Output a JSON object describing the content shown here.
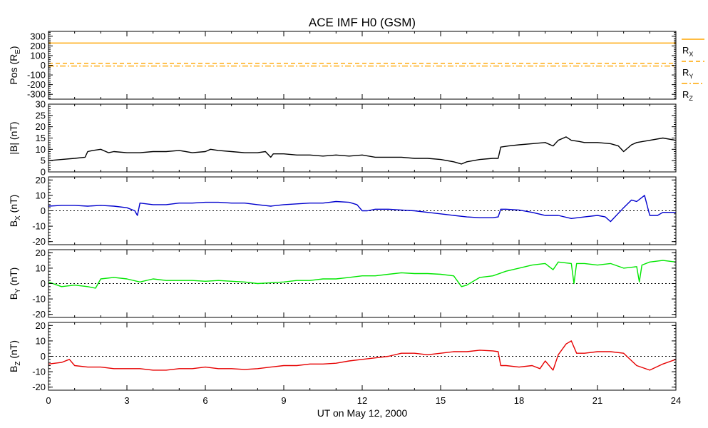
{
  "colors": {
    "rx": "#ffa500",
    "ry": "#ffa500",
    "rz": "#ffa500",
    "b": "#000000",
    "bx": "#0000cd",
    "by": "#00e600",
    "bz": "#e60000"
  },
  "chart_data": {
    "type": "line",
    "title": "ACE IMF H0 (GSM)",
    "xlabel": "UT on May 12, 2000",
    "xlim": [
      0,
      24
    ],
    "x_ticks": [
      "0",
      "3",
      "6",
      "9",
      "12",
      "15",
      "18",
      "21",
      "24"
    ],
    "x_tick_values": [
      0,
      3,
      6,
      9,
      12,
      15,
      18,
      21,
      24
    ],
    "panels": [
      {
        "key": "pos",
        "ylabel": {
          "main": "Pos (R",
          "sub": "E",
          "tail": ")"
        },
        "ylim": [
          -350,
          350
        ],
        "y_ticks": [
          "300",
          "200",
          "100",
          "0",
          "-100",
          "-200",
          "-300"
        ],
        "y_tick_values": [
          300,
          200,
          100,
          0,
          -100,
          -200,
          -300
        ],
        "zero_line": false,
        "legend": [
          {
            "name": "R",
            "sub": "X",
            "dash": "solid"
          },
          {
            "name": "R",
            "sub": "Y",
            "dash": "dashed"
          },
          {
            "name": "R",
            "sub": "Z",
            "dash": "dashdot"
          }
        ],
        "series": [
          {
            "name": "RX",
            "style": "solid",
            "x": [
              0,
              24
            ],
            "y": [
              230,
              230
            ]
          },
          {
            "name": "RY",
            "style": "dashed",
            "x": [
              0,
              24
            ],
            "y": [
              21,
              21
            ]
          },
          {
            "name": "RZ",
            "style": "dashdot",
            "x": [
              0,
              24
            ],
            "y": [
              -8,
              -8
            ]
          }
        ]
      },
      {
        "key": "b",
        "ylabel": {
          "main": "|B| (nT)",
          "sub": "",
          "tail": ""
        },
        "ylim": [
          0,
          30
        ],
        "y_ticks": [
          "30",
          "25",
          "20",
          "15",
          "10",
          "5",
          "0"
        ],
        "y_tick_values": [
          30,
          25,
          20,
          15,
          10,
          5,
          0
        ],
        "zero_line": false,
        "series": [
          {
            "name": "|B|",
            "x": [
              0,
              0.5,
              1.0,
              1.4,
              1.5,
              1.7,
              2.0,
              2.3,
              2.5,
              3.0,
              3.5,
              4.0,
              4.5,
              5.0,
              5.5,
              6.0,
              6.2,
              6.5,
              7.0,
              7.5,
              8.0,
              8.3,
              8.5,
              8.6,
              9.0,
              9.5,
              10.0,
              10.5,
              11.0,
              11.5,
              12.0,
              12.5,
              13.0,
              13.5,
              14.0,
              14.5,
              15.0,
              15.5,
              15.8,
              16.0,
              16.5,
              17.0,
              17.2,
              17.3,
              17.6,
              18.0,
              18.5,
              19.0,
              19.3,
              19.5,
              19.8,
              20.0,
              20.3,
              20.5,
              21.0,
              21.5,
              21.8,
              22.0,
              22.3,
              22.5,
              23.0,
              23.5,
              24.0
            ],
            "y": [
              5,
              5.5,
              6,
              6.5,
              9,
              9.5,
              10,
              8.5,
              9,
              8.5,
              8.5,
              9,
              9,
              9.5,
              8.5,
              9,
              10,
              9.5,
              9,
              8.5,
              8.5,
              9,
              6.5,
              8,
              8,
              7.5,
              7.5,
              7,
              7.5,
              7,
              7.5,
              6.5,
              6.5,
              6.5,
              6,
              6,
              5.5,
              4.5,
              3.5,
              4.5,
              5.5,
              6,
              6,
              11,
              11.5,
              12,
              12.5,
              13,
              11.5,
              14,
              15.5,
              14,
              13.5,
              13,
              13,
              12.5,
              11.5,
              9,
              12,
              13,
              14,
              15,
              14
            ]
          }
        ]
      },
      {
        "key": "bx",
        "ylabel": {
          "main": "B",
          "sub": "X",
          "tail": " (nT)"
        },
        "ylim": [
          -22,
          22
        ],
        "y_ticks": [
          "20",
          "10",
          "0",
          "-10",
          "-20"
        ],
        "y_tick_values": [
          20,
          10,
          0,
          -10,
          -20
        ],
        "zero_line": true,
        "series": [
          {
            "name": "BX",
            "x": [
              0,
              0.5,
              1.0,
              1.5,
              2.0,
              2.5,
              3.0,
              3.3,
              3.4,
              3.5,
              4.0,
              4.5,
              5.0,
              5.5,
              6.0,
              6.5,
              7.0,
              7.5,
              8.0,
              8.5,
              9.0,
              9.5,
              10.0,
              10.5,
              11.0,
              11.5,
              11.8,
              12.0,
              12.2,
              12.5,
              13.0,
              13.5,
              14.0,
              14.5,
              15.0,
              15.5,
              16.0,
              16.5,
              17.0,
              17.2,
              17.3,
              17.5,
              18.0,
              18.5,
              19.0,
              19.5,
              20.0,
              20.5,
              21.0,
              21.3,
              21.5,
              22.0,
              22.3,
              22.5,
              22.8,
              23.0,
              23.3,
              23.5,
              24.0
            ],
            "y": [
              3,
              3.5,
              3.5,
              3,
              3.5,
              3,
              2,
              0,
              -3,
              5,
              4,
              4,
              5,
              5,
              5.5,
              5.5,
              5,
              5,
              4,
              3,
              4,
              4.5,
              5,
              5,
              6,
              5.5,
              4,
              0,
              0,
              1,
              1,
              0.5,
              0,
              -1,
              -2,
              -3,
              -4,
              -4.5,
              -4.5,
              -4,
              1,
              1,
              0.5,
              -1,
              -3,
              -3,
              -5,
              -4,
              -3,
              -4,
              -7,
              2,
              7,
              6,
              10,
              -3,
              -3,
              -1,
              -1
            ]
          }
        ]
      },
      {
        "key": "by",
        "ylabel": {
          "main": "B",
          "sub": "Y",
          "tail": " (nT)"
        },
        "ylim": [
          -22,
          22
        ],
        "y_ticks": [
          "20",
          "10",
          "0",
          "-10",
          "-20"
        ],
        "y_tick_values": [
          20,
          10,
          0,
          -10,
          -20
        ],
        "zero_line": true,
        "series": [
          {
            "name": "BY",
            "x": [
              0,
              0.5,
              1.0,
              1.5,
              1.8,
              2.0,
              2.5,
              3.0,
              3.5,
              4.0,
              4.5,
              5.0,
              5.5,
              6.0,
              6.5,
              7.0,
              7.5,
              8.0,
              8.5,
              9.0,
              9.5,
              10.0,
              10.5,
              11.0,
              11.5,
              12.0,
              12.5,
              13.0,
              13.5,
              14.0,
              14.5,
              15.0,
              15.5,
              15.8,
              16.0,
              16.5,
              17.0,
              17.5,
              18.0,
              18.5,
              19.0,
              19.3,
              19.5,
              20.0,
              20.1,
              20.2,
              20.5,
              21.0,
              21.5,
              22.0,
              22.5,
              22.6,
              22.7,
              23.0,
              23.5,
              24.0
            ],
            "y": [
              1,
              -2,
              -1,
              -2,
              -3,
              3,
              4,
              3,
              1,
              3,
              2,
              2,
              2,
              1.5,
              2,
              1.5,
              1,
              0,
              0.5,
              1,
              2,
              2,
              3,
              3,
              4,
              5,
              5,
              6,
              7,
              6.5,
              6.5,
              6,
              5,
              -2,
              -1,
              4,
              5,
              8,
              10,
              12,
              13,
              9,
              14,
              13,
              0,
              13,
              13,
              12,
              13,
              10,
              11,
              1,
              12,
              14,
              15,
              14
            ]
          }
        ]
      },
      {
        "key": "bz",
        "ylabel": {
          "main": "B",
          "sub": "Z",
          "tail": " (nT)"
        },
        "ylim": [
          -22,
          22
        ],
        "y_ticks": [
          "20",
          "10",
          "0",
          "-10",
          "-20"
        ],
        "y_tick_values": [
          20,
          10,
          0,
          -10,
          -20
        ],
        "zero_line": true,
        "series": [
          {
            "name": "BZ",
            "x": [
              0,
              0.5,
              0.8,
              1.0,
              1.5,
              2.0,
              2.5,
              3.0,
              3.5,
              4.0,
              4.5,
              5.0,
              5.5,
              6.0,
              6.5,
              7.0,
              7.5,
              8.0,
              8.5,
              9.0,
              9.5,
              10.0,
              10.5,
              11.0,
              11.5,
              12.0,
              12.5,
              13.0,
              13.5,
              14.0,
              14.5,
              15.0,
              15.5,
              16.0,
              16.5,
              17.0,
              17.2,
              17.3,
              17.5,
              18.0,
              18.5,
              18.8,
              19.0,
              19.3,
              19.5,
              19.8,
              20.0,
              20.2,
              20.5,
              21.0,
              21.5,
              22.0,
              22.5,
              23.0,
              23.5,
              24.0
            ],
            "y": [
              -5,
              -4,
              -2,
              -6,
              -7,
              -7,
              -8,
              -8,
              -8,
              -9,
              -9,
              -8,
              -8,
              -7,
              -8,
              -8,
              -8.5,
              -8,
              -7,
              -6,
              -6,
              -5,
              -5,
              -4.5,
              -3,
              -2,
              -1,
              0,
              2,
              2,
              1,
              2,
              3,
              3,
              4,
              3.5,
              3,
              -6,
              -6,
              -7,
              -6,
              -8,
              -3,
              -9,
              1,
              8,
              10,
              2,
              2,
              3,
              3,
              2,
              -6,
              -9,
              -5,
              -2
            ]
          }
        ]
      }
    ]
  }
}
